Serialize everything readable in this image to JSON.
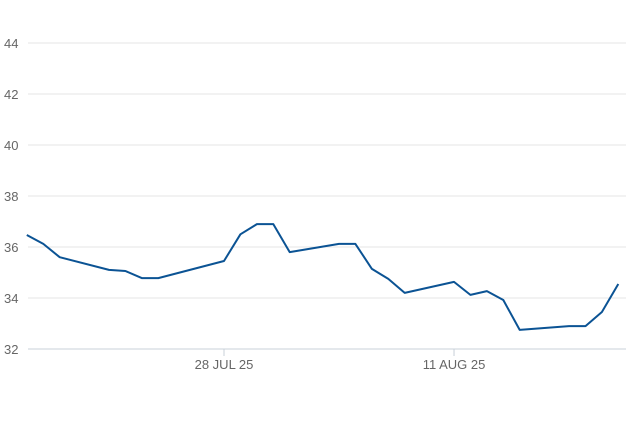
{
  "chart_data": {
    "type": "line",
    "title": "",
    "xlabel": "",
    "ylabel": "",
    "ylim": [
      32,
      44
    ],
    "yticks": [
      32,
      34,
      36,
      38,
      40,
      42,
      44
    ],
    "xticks": [
      {
        "date": "2025-07-28",
        "label": "28 JUL 25"
      },
      {
        "date": "2025-08-11",
        "label": "11 AUG 25"
      }
    ],
    "xlim": [
      "2025-07-16",
      "2025-08-21"
    ],
    "grid": "horizontal",
    "line_color": "#0b5394",
    "series": [
      {
        "points": [
          [
            "2025-07-16",
            36.47
          ],
          [
            "2025-07-17",
            36.12
          ],
          [
            "2025-07-18",
            35.6
          ],
          [
            "2025-07-21",
            35.1
          ],
          [
            "2025-07-22",
            35.06
          ],
          [
            "2025-07-23",
            34.78
          ],
          [
            "2025-07-24",
            34.78
          ],
          [
            "2025-07-28",
            35.45
          ],
          [
            "2025-07-29",
            36.5
          ],
          [
            "2025-07-30",
            36.9
          ],
          [
            "2025-07-31",
            36.9
          ],
          [
            "2025-08-01",
            35.8
          ],
          [
            "2025-08-04",
            36.12
          ],
          [
            "2025-08-05",
            36.12
          ],
          [
            "2025-08-06",
            35.14
          ],
          [
            "2025-08-07",
            34.75
          ],
          [
            "2025-08-08",
            34.2
          ],
          [
            "2025-08-11",
            34.63
          ],
          [
            "2025-08-12",
            34.12
          ],
          [
            "2025-08-13",
            34.27
          ],
          [
            "2025-08-14",
            33.92
          ],
          [
            "2025-08-15",
            32.75
          ],
          [
            "2025-08-18",
            32.9
          ],
          [
            "2025-08-19",
            32.9
          ],
          [
            "2025-08-20",
            33.45
          ],
          [
            "2025-08-21",
            34.55
          ]
        ]
      }
    ]
  }
}
